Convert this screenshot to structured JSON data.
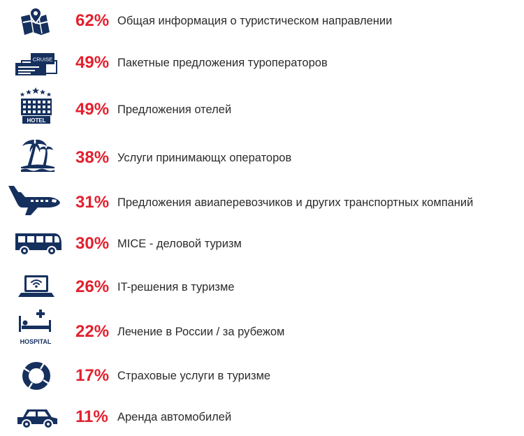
{
  "chart_data": {
    "type": "bar",
    "unit": "%",
    "categories": [
      "Общая информация о туристическом направлении",
      "Пакетные предложения туроператоров",
      "Предложения отелей",
      "Услуги принимающх операторов",
      "Предложения авиаперевозчиков и других транспортных компаний",
      "MICE - деловой туризм",
      "IT-решения в туризме",
      "Лечение в России / за рубежом",
      "Страховые услуги в туризме",
      "Аренда автомобилей"
    ],
    "values": [
      62,
      49,
      49,
      38,
      31,
      30,
      26,
      22,
      17,
      11
    ],
    "value_labels": [
      "62%",
      "49%",
      "49%",
      "38%",
      "31%",
      "30%",
      "26%",
      "22%",
      "17%",
      "11%"
    ],
    "icons": [
      "map-icon",
      "cruise-ticket-icon",
      "hotel-icon",
      "palm-beach-icon",
      "airplane-icon",
      "bus-icon",
      "laptop-wifi-icon",
      "hospital-bed-icon",
      "lifebuoy-icon",
      "car-icon"
    ],
    "icon_texts": {
      "cruise": "CRUISE",
      "hotel": "HOTEL",
      "hospital": "HOSPITAL"
    }
  },
  "colors": {
    "accent": "#e3202e",
    "icon": "#16305e",
    "text": "#2b2b2b"
  }
}
